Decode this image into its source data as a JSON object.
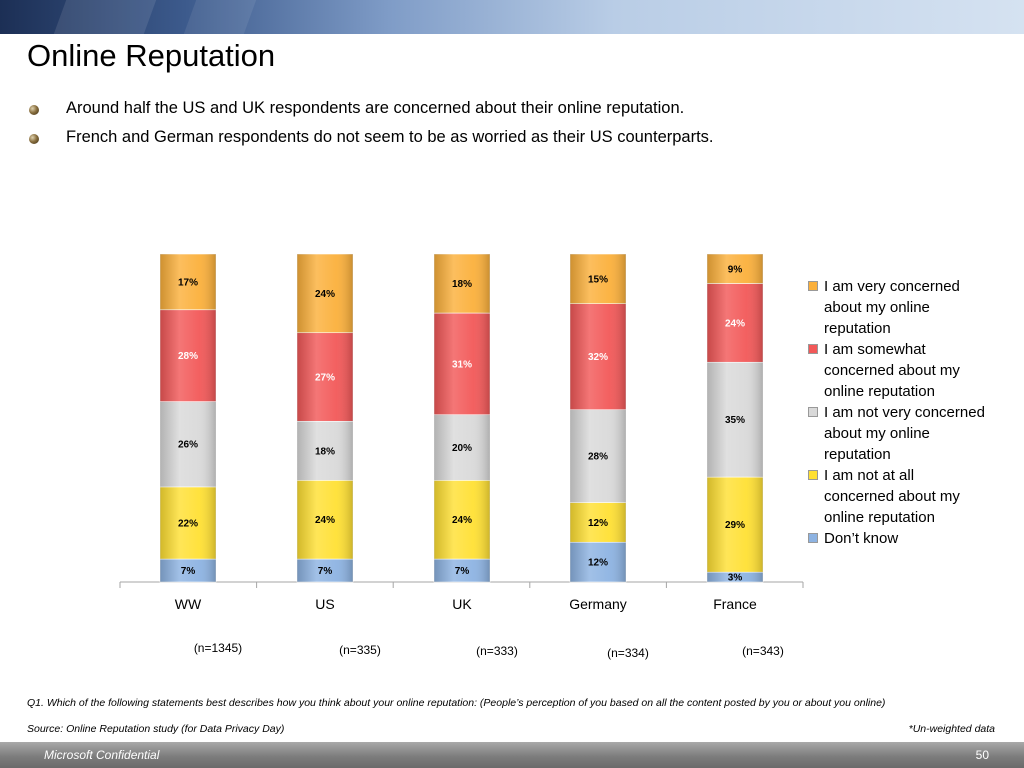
{
  "slide": {
    "title": "Online Reputation",
    "bullets": [
      "Around half the US and UK respondents are concerned about their online reputation.",
      "French and German respondents do not seem to be as worried as their US counterparts."
    ],
    "question": "Q1. Which of the following statements best describes how you think about your online reputation: (People’s perception of you based on all the content posted by you or about you online)",
    "source": "Source: Online Reputation study (for Data Privacy Day)",
    "note": "*Un-weighted data",
    "footer_left": "Microsoft Confidential",
    "page_number": "50"
  },
  "chart_data": {
    "type": "bar",
    "stacked": true,
    "percent_stacked": true,
    "categories": [
      "WW",
      "US",
      "UK",
      "Germany",
      "France"
    ],
    "sample_sizes": [
      "(n=1345)",
      "(n=335)",
      "(n=333)",
      "(n=334)",
      "(n=343)"
    ],
    "series": [
      {
        "name": "Don’t know",
        "values": [
          7,
          7,
          7,
          12,
          3
        ],
        "labels": [
          "7%",
          "7%",
          "7%",
          "12%",
          "3%"
        ],
        "color": "#8db3e2",
        "label_color": "#000000"
      },
      {
        "name": "I am not at all concerned about my online reputation",
        "values": [
          22,
          24,
          24,
          12,
          29
        ],
        "labels": [
          "22%",
          "24%",
          "24%",
          "12%",
          "29%"
        ],
        "color": "#ffe033",
        "label_color": "#000000"
      },
      {
        "name": "I am not very concerned about my online reputation",
        "values": [
          26,
          18,
          20,
          28,
          35
        ],
        "labels": [
          "26%",
          "18%",
          "20%",
          "28%",
          "35%"
        ],
        "color": "#d9d9d9",
        "label_color": "#000000"
      },
      {
        "name": "I am somewhat concerned about my online reputation",
        "values": [
          28,
          27,
          31,
          32,
          24
        ],
        "labels": [
          "28%",
          "27%",
          "31%",
          "32%",
          "24%"
        ],
        "color": "#f25858",
        "label_color": "#ffffff"
      },
      {
        "name": "I am very concerned about my online reputation",
        "values": [
          17,
          24,
          18,
          15,
          9
        ],
        "labels": [
          "17%",
          "24%",
          "18%",
          "15%",
          "9%"
        ],
        "color": "#fbb03b",
        "label_color": "#000000"
      }
    ],
    "legend_order": [
      4,
      3,
      2,
      1,
      0
    ],
    "legend_position": "right",
    "grid": false,
    "xlabel": "",
    "ylabel": ""
  }
}
